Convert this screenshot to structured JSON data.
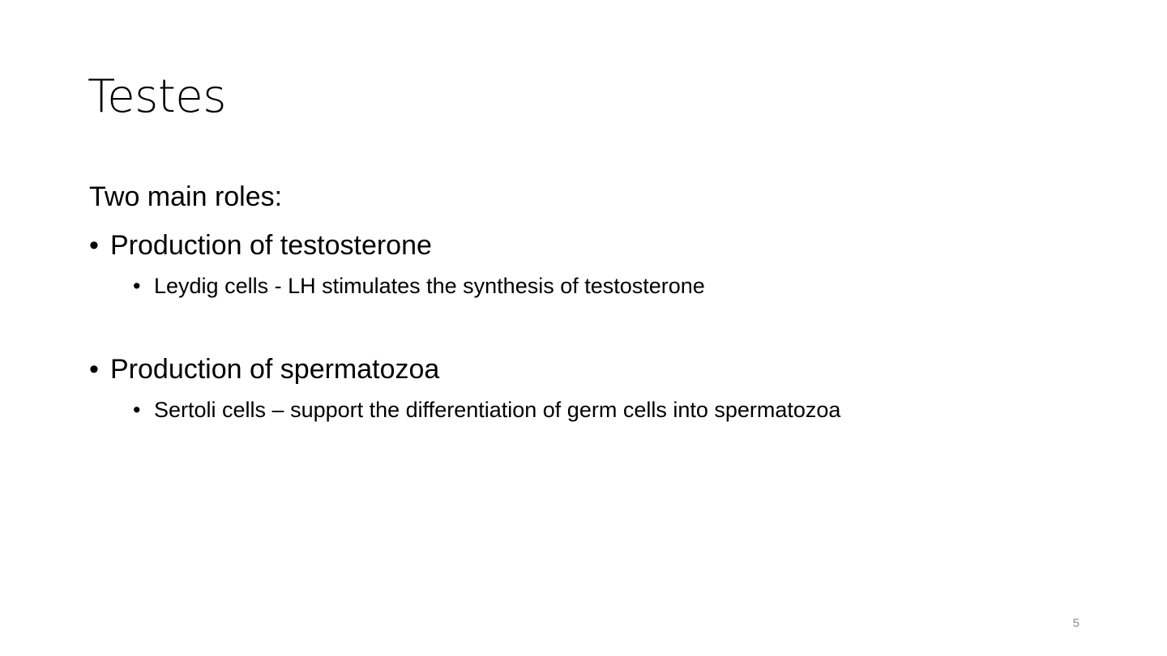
{
  "slide": {
    "title": "Testes",
    "intro": "Two main roles:",
    "bullet_symbol": "•",
    "bullets": [
      {
        "text": "Production of testosterone",
        "sub": "Leydig cells - LH stimulates the synthesis of testosterone"
      },
      {
        "text": "Production of spermatozoa",
        "sub": "Sertoli cells – support the differentiation of germ cells into spermatozoa"
      }
    ],
    "page_number": "5"
  }
}
